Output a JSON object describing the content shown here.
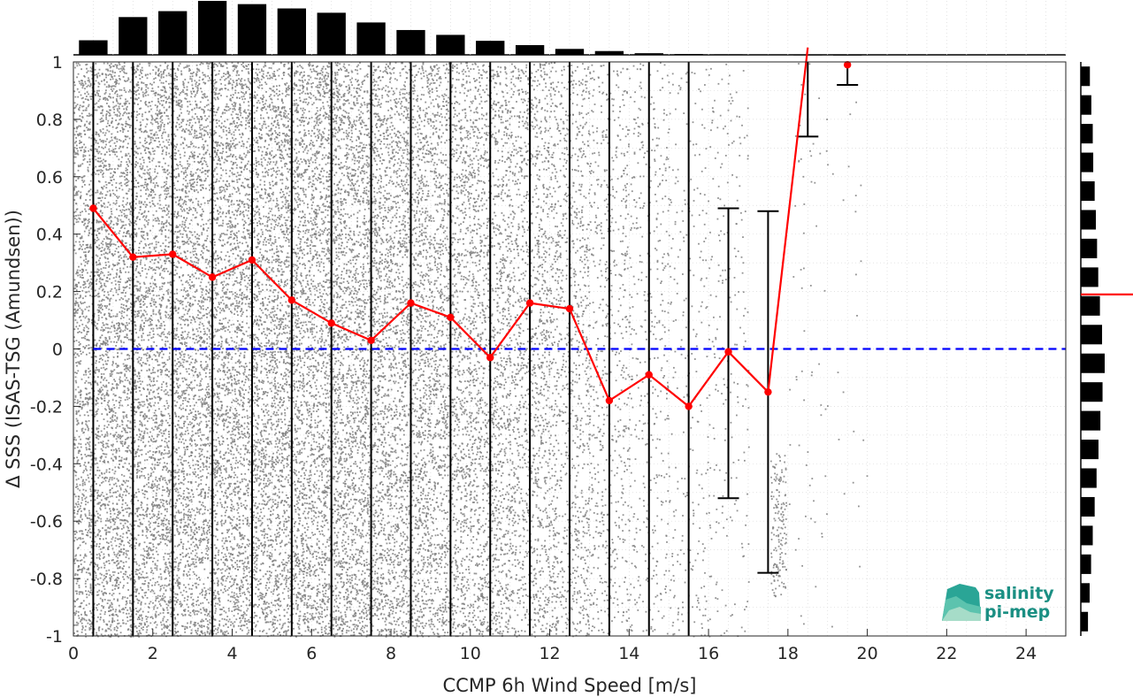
{
  "chart_data": {
    "type": "scatter",
    "xlabel": "CCMP 6h Wind Speed [m/s]",
    "ylabel": "Δ SSS (ISAS-TSG (Amundsen))",
    "xlim": [
      0,
      25
    ],
    "ylim": [
      -1,
      1
    ],
    "xticks": [
      "0",
      "2",
      "4",
      "6",
      "8",
      "10",
      "12",
      "14",
      "16",
      "18",
      "20",
      "22",
      "24"
    ],
    "yticks": [
      "1",
      "0.8",
      "0.6",
      "0.4",
      "0.2",
      "0",
      "-0.2",
      "-0.4",
      "-0.6",
      "-0.8",
      "-1"
    ],
    "grid": true,
    "scatter_color": "#808080",
    "zero_line": {
      "y": 0,
      "color": "#0000ff",
      "style": "dashed"
    },
    "mean_series": {
      "color": "#ff0000",
      "x": [
        0.5,
        1.5,
        2.5,
        3.5,
        4.5,
        5.5,
        6.5,
        7.5,
        8.5,
        9.5,
        10.5,
        11.5,
        12.5,
        13.5,
        14.5,
        15.5,
        16.5,
        17.5,
        18.5,
        19.5
      ],
      "y": [
        0.49,
        0.32,
        0.33,
        0.25,
        0.31,
        0.17,
        0.09,
        0.03,
        0.16,
        0.11,
        -0.03,
        0.16,
        0.14,
        -0.18,
        -0.09,
        -0.2,
        -0.01,
        -0.15,
        1.05,
        0.99
      ]
    },
    "error_bars": [
      {
        "x": 0.5,
        "low": -1.0,
        "high": 1.0
      },
      {
        "x": 1.5,
        "low": -1.0,
        "high": 1.0
      },
      {
        "x": 2.5,
        "low": -1.0,
        "high": 1.0
      },
      {
        "x": 3.5,
        "low": -1.0,
        "high": 1.0
      },
      {
        "x": 4.5,
        "low": -1.0,
        "high": 1.0
      },
      {
        "x": 5.5,
        "low": -1.0,
        "high": 1.0
      },
      {
        "x": 6.5,
        "low": -1.0,
        "high": 1.0
      },
      {
        "x": 7.5,
        "low": -1.0,
        "high": 1.0
      },
      {
        "x": 8.5,
        "low": -1.0,
        "high": 1.0
      },
      {
        "x": 9.5,
        "low": -1.0,
        "high": 1.0
      },
      {
        "x": 10.5,
        "low": -1.0,
        "high": 1.0
      },
      {
        "x": 11.5,
        "low": -1.0,
        "high": 1.0
      },
      {
        "x": 12.5,
        "low": -1.0,
        "high": 1.0
      },
      {
        "x": 13.5,
        "low": -1.0,
        "high": 1.0
      },
      {
        "x": 14.5,
        "low": -1.0,
        "high": 1.0
      },
      {
        "x": 15.5,
        "low": -1.0,
        "high": 1.0
      },
      {
        "x": 16.5,
        "low": -0.52,
        "high": 0.49
      },
      {
        "x": 17.5,
        "low": -0.78,
        "high": 0.48
      },
      {
        "x": 18.5,
        "low": 0.74,
        "high": 1.0
      },
      {
        "x": 19.5,
        "low": 0.92,
        "high": 1.0
      }
    ],
    "scatter_density": [
      1.0,
      1.0,
      1.0,
      1.0,
      1.0,
      1.0,
      1.0,
      0.95,
      0.85,
      0.75,
      0.7,
      0.6,
      0.5,
      0.3,
      0.2,
      0.12,
      0.1,
      0.07,
      0.03,
      0.01
    ],
    "top_histogram": {
      "bins": [
        0.5,
        1.5,
        2.5,
        3.5,
        4.5,
        5.5,
        6.5,
        7.5,
        8.5,
        9.5,
        10.5,
        11.5,
        12.5,
        13.5,
        14.5,
        15.5,
        16.5,
        17.5,
        18.5,
        19.5
      ],
      "values": [
        0.27,
        0.7,
        0.81,
        1.0,
        0.94,
        0.86,
        0.78,
        0.6,
        0.46,
        0.37,
        0.26,
        0.18,
        0.11,
        0.07,
        0.03,
        0.015,
        0.01,
        0.006,
        0.003,
        0.001
      ]
    },
    "right_histogram": {
      "bins": [
        0.95,
        0.85,
        0.75,
        0.65,
        0.55,
        0.45,
        0.35,
        0.25,
        0.15,
        0.05,
        -0.05,
        -0.15,
        -0.25,
        -0.35,
        -0.45,
        -0.55,
        -0.65,
        -0.75,
        -0.85,
        -0.95
      ],
      "values": [
        0.38,
        0.44,
        0.5,
        0.52,
        0.58,
        0.63,
        0.68,
        0.73,
        0.8,
        0.89,
        1.0,
        0.91,
        0.82,
        0.74,
        0.66,
        0.58,
        0.5,
        0.43,
        0.37,
        0.3
      ]
    },
    "right_marker": {
      "y": 0.19,
      "color": "#ff0000"
    }
  },
  "logo": {
    "line1": "salinity",
    "line2": "pi-mep"
  }
}
